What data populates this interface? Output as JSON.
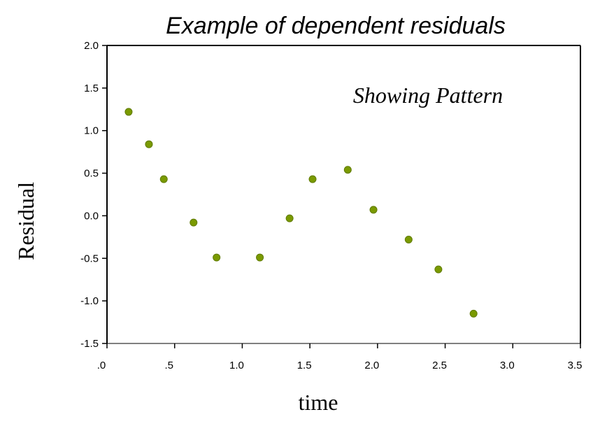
{
  "chart_data": {
    "type": "scatter",
    "title": "Example of dependent residuals",
    "xlabel": "time",
    "ylabel": "Residual",
    "annotation": "Showing Pattern",
    "xlim": [
      0,
      3.5
    ],
    "ylim": [
      -1.5,
      2.0
    ],
    "x_ticks": [
      0,
      0.5,
      1.0,
      1.5,
      2.0,
      2.5,
      3.0,
      3.5
    ],
    "x_tick_labels": [
      ".0",
      ".5",
      "1.0",
      "1.5",
      "2.0",
      "2.5",
      "3.0",
      "3.5"
    ],
    "y_ticks": [
      2.0,
      1.5,
      1.0,
      0.5,
      0.0,
      -0.5,
      -1.0,
      -1.5
    ],
    "y_tick_labels": [
      "2.0",
      "1.5",
      "1.0",
      "0.5",
      "0.0",
      "-0.5",
      "-1.0",
      "-1.5"
    ],
    "grid": false,
    "marker_color": "#7a9a01",
    "points": [
      {
        "x": 0.16,
        "y": 1.22
      },
      {
        "x": 0.31,
        "y": 0.84
      },
      {
        "x": 0.42,
        "y": 0.43
      },
      {
        "x": 0.64,
        "y": -0.08
      },
      {
        "x": 0.81,
        "y": -0.49
      },
      {
        "x": 1.13,
        "y": -0.49
      },
      {
        "x": 1.35,
        "y": -0.03
      },
      {
        "x": 1.52,
        "y": 0.43
      },
      {
        "x": 1.78,
        "y": 0.54
      },
      {
        "x": 1.97,
        "y": 0.07
      },
      {
        "x": 2.23,
        "y": -0.28
      },
      {
        "x": 2.45,
        "y": -0.63
      },
      {
        "x": 2.71,
        "y": -1.15
      }
    ]
  }
}
